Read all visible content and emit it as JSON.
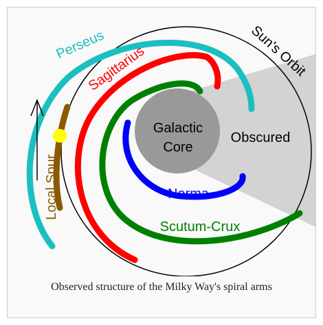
{
  "diagram": {
    "labels": {
      "perseus": "Perseus",
      "sagittarius": "Sagittarius",
      "orbit": "Sun's Orbit",
      "core": [
        "Galactic",
        "Core"
      ],
      "obscured": "Obscured",
      "norma": "Norma",
      "scutum": "Scutum-Crux",
      "spur": "Local Spur"
    },
    "caption": "Observed structure of the Milky Way's spiral arms"
  }
}
